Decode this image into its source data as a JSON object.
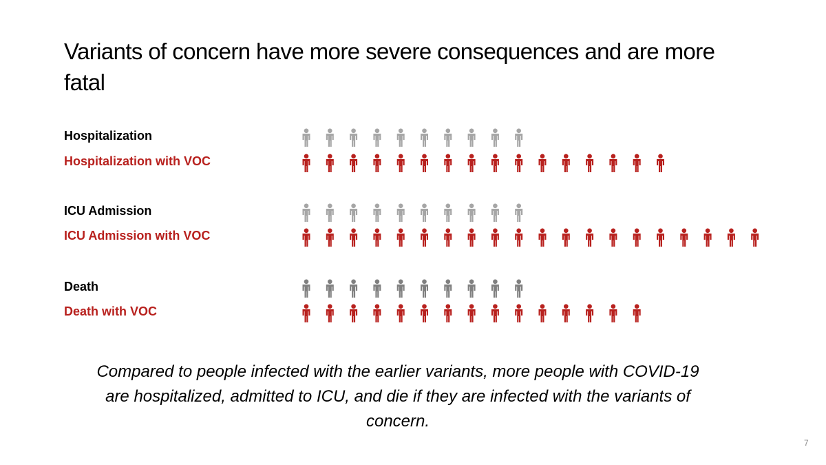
{
  "chart_data": {
    "type": "pictograph",
    "title": "Variants of concern have more severe consequences and are more fatal",
    "categories": [
      "Hospitalization",
      "Hospitalization with VOC",
      "ICU Admission",
      "ICU Admission with VOC",
      "Death",
      "Death with VOC"
    ],
    "values": [
      10,
      16,
      10,
      20,
      10,
      15
    ],
    "colors": [
      "#a6a6a6",
      "#b8211e",
      "#a6a6a6",
      "#b8211e",
      "#808080",
      "#b8211e"
    ],
    "label_colors": [
      "#000000",
      "#b8211e",
      "#000000",
      "#b8211e",
      "#000000",
      "#b8211e"
    ],
    "caption": "Compared to people infected with the earlier variants, more people with COVID-19 are hospitalized, admitted to ICU, and die if they are infected with the variants of concern.",
    "page_number": "7"
  }
}
